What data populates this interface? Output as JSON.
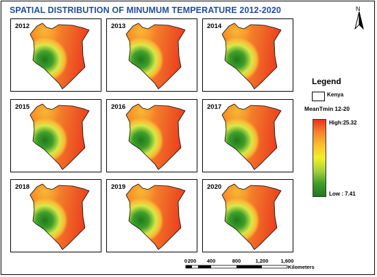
{
  "title": "SPATIAL DISTRIBUTION OF MINUMUM TEMPERATURE 2012-2020",
  "north_arrow": {
    "label": "N",
    "icon": "north-arrow-icon"
  },
  "panels": [
    {
      "year": "2012"
    },
    {
      "year": "2013"
    },
    {
      "year": "2014"
    },
    {
      "year": "2015"
    },
    {
      "year": "2016"
    },
    {
      "year": "2017"
    },
    {
      "year": "2018"
    },
    {
      "year": "2019"
    },
    {
      "year": "2020"
    }
  ],
  "legend": {
    "title": "Legend",
    "boundary_label": "Kenya",
    "ramp_title": "MeanTmin 12-20",
    "high_label": "High:25.32",
    "low_label": "Low : 7.41",
    "high_value": 25.32,
    "low_value": 7.41,
    "ramp_colors": [
      "#e8321c",
      "#f7852a",
      "#fbc02d",
      "#f2ef2a",
      "#a7d13a",
      "#3f9e2a",
      "#1f7a1c"
    ]
  },
  "scale_bar": {
    "ticks": [
      "0",
      "200",
      "400",
      "800",
      "1,200",
      "1,600"
    ],
    "units": "Kilometers"
  },
  "colors": {
    "title": "#1f4e9a",
    "hot": "#e8321c",
    "warm": "#f58a2c",
    "mild": "#f9c335",
    "cool": "#d7e84b",
    "cold": "#3f9e2a",
    "coldest": "#1f7a1c"
  }
}
